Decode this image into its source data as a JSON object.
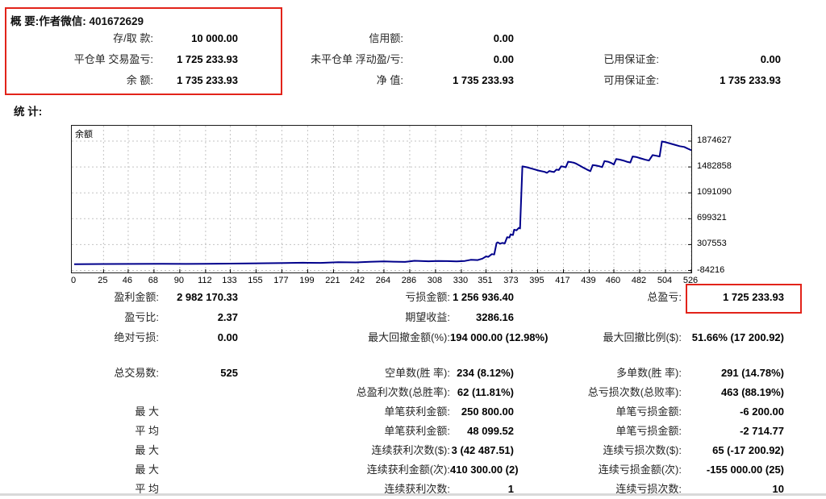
{
  "summary": {
    "heading": "概 要:作者微信: 401672629",
    "rows": [
      {
        "c1l": "存/取 款:",
        "c1v": "10 000.00",
        "c2l": "信用额:",
        "c2v": "0.00",
        "c3l": "",
        "c3v": ""
      },
      {
        "c1l": "平仓单 交易盈亏:",
        "c1v": "1 725 233.93",
        "c2l": "未平仓单 浮动盈/亏:",
        "c2v": "0.00",
        "c3l": "已用保证金:",
        "c3v": "0.00"
      },
      {
        "c1l": "余 额:",
        "c1v": "1 735 233.93",
        "c2l": "净 值:",
        "c2v": "1 735 233.93",
        "c3l": "可用保证金:",
        "c3v": "1 735 233.93"
      }
    ]
  },
  "stats": {
    "heading": "统 计:",
    "rows": [
      {
        "l1": "盈利金额:",
        "v1": "2 982 170.33",
        "l2": "亏损金额:",
        "v2": "1 256 936.40",
        "l3": "总盈亏:",
        "v3": "1 725 233.93"
      },
      {
        "l1": "盈亏比:",
        "v1": "2.37",
        "l2": "期望收益:",
        "v2": "3286.16",
        "l3": "",
        "v3": ""
      },
      {
        "l1": "绝对亏损:",
        "v1": "0.00",
        "l2": "最大回撤金额(%):",
        "v2": "194 000.00 (12.98%)",
        "l3": "最大回撤比例($):",
        "v3": "51.66% (17 200.92)"
      },
      {
        "l1": "总交易数:",
        "v1": "525",
        "l2": "空单数(胜 率):",
        "v2": "234 (8.12%)",
        "l3": "多单数(胜 率):",
        "v3": "291 (14.78%)"
      },
      {
        "l1": "",
        "v1": "",
        "l2": "总盈利次数(总胜率):",
        "v2": "62 (11.81%)",
        "l3": "总亏损次数(总败率):",
        "v3": "463 (88.19%)"
      },
      {
        "l1": "最 大",
        "v1": "",
        "l2": "单笔获利金额:",
        "v2": "250 800.00",
        "l3": "单笔亏损金额:",
        "v3": "-6 200.00"
      },
      {
        "l1": "平 均",
        "v1": "",
        "l2": "单笔获利金额:",
        "v2": "48 099.52",
        "l3": "单笔亏损金额:",
        "v3": "-2 714.77"
      },
      {
        "l1": "最 大",
        "v1": "",
        "l2": "连续获利次数($):",
        "v2": "3 (42 487.51)",
        "l3": "连续亏损次数($):",
        "v3": "65 (-17 200.92)"
      },
      {
        "l1": "最 大",
        "v1": "",
        "l2": "连续获利金额(次):",
        "v2": "410 300.00 (2)",
        "l3": "连续亏损金额(次):",
        "v3": "-155 000.00 (25)"
      },
      {
        "l1": "平 均",
        "v1": "",
        "l2": "连续获利次数:",
        "v2": "1",
        "l3": "连续亏损次数:",
        "v3": "10"
      }
    ]
  },
  "colors": {
    "highlight_red": "#e2231a",
    "equity_line": "#00008b",
    "grid": "#c3c3c3"
  },
  "chart_data": {
    "type": "line",
    "title": "",
    "legend": "余额",
    "xlabel": "",
    "ylabel": "",
    "grid": "dashed",
    "legend_position": "top-left-inside",
    "ylim": [
      -84216,
      1874627
    ],
    "yticks": [
      1874627,
      1482858,
      1091090,
      699321,
      307553,
      -84216
    ],
    "xticks": [
      0,
      25,
      46,
      68,
      90,
      112,
      133,
      155,
      177,
      199,
      221,
      242,
      264,
      286,
      308,
      330,
      351,
      373,
      395,
      417,
      439,
      460,
      482,
      504,
      526
    ],
    "series": [
      {
        "name": "余额",
        "points": [
          [
            0,
            10000
          ],
          [
            25,
            13000
          ],
          [
            50,
            15000
          ],
          [
            75,
            16000
          ],
          [
            95,
            14500
          ],
          [
            112,
            17000
          ],
          [
            133,
            20000
          ],
          [
            150,
            23000
          ],
          [
            165,
            26000
          ],
          [
            180,
            29000
          ],
          [
            195,
            33000
          ],
          [
            210,
            31000
          ],
          [
            225,
            40000
          ],
          [
            240,
            38000
          ],
          [
            252,
            46000
          ],
          [
            264,
            52000
          ],
          [
            272,
            49000
          ],
          [
            282,
            45000
          ],
          [
            290,
            62000
          ],
          [
            295,
            58000
          ],
          [
            302,
            55000
          ],
          [
            310,
            60000
          ],
          [
            318,
            57000
          ],
          [
            326,
            53000
          ],
          [
            333,
            60000
          ],
          [
            338,
            77000
          ],
          [
            344,
            73000
          ],
          [
            348,
            95000
          ],
          [
            351,
            128000
          ],
          [
            353,
            122000
          ],
          [
            356,
            163000
          ],
          [
            358,
            158000
          ],
          [
            360,
            330000
          ],
          [
            361,
            342000
          ],
          [
            363,
            322000
          ],
          [
            365,
            332000
          ],
          [
            367,
            326000
          ],
          [
            369,
            420000
          ],
          [
            371,
            414000
          ],
          [
            372,
            462000
          ],
          [
            374,
            452000
          ],
          [
            375,
            532000
          ],
          [
            377,
            524000
          ],
          [
            379,
            560000
          ],
          [
            380,
            552000
          ],
          [
            382,
            1492000
          ],
          [
            386,
            1478000
          ],
          [
            391,
            1452000
          ],
          [
            396,
            1428000
          ],
          [
            401,
            1408000
          ],
          [
            403,
            1394000
          ],
          [
            405,
            1422000
          ],
          [
            407,
            1412000
          ],
          [
            409,
            1406000
          ],
          [
            411,
            1442000
          ],
          [
            413,
            1436000
          ],
          [
            415,
            1492000
          ],
          [
            417,
            1486000
          ],
          [
            419,
            1478000
          ],
          [
            421,
            1562000
          ],
          [
            424,
            1554000
          ],
          [
            426,
            1546000
          ],
          [
            428,
            1532000
          ],
          [
            431,
            1502000
          ],
          [
            434,
            1472000
          ],
          [
            437,
            1444000
          ],
          [
            440,
            1420000
          ],
          [
            442,
            1512000
          ],
          [
            445,
            1504000
          ],
          [
            448,
            1492000
          ],
          [
            450,
            1480000
          ],
          [
            452,
            1572000
          ],
          [
            455,
            1562000
          ],
          [
            458,
            1542000
          ],
          [
            460,
            1520000
          ],
          [
            462,
            1602000
          ],
          [
            465,
            1594000
          ],
          [
            468,
            1580000
          ],
          [
            471,
            1562000
          ],
          [
            474,
            1550000
          ],
          [
            476,
            1642000
          ],
          [
            479,
            1634000
          ],
          [
            483,
            1612000
          ],
          [
            487,
            1592000
          ],
          [
            490,
            1580000
          ],
          [
            493,
            1662000
          ],
          [
            496,
            1652000
          ],
          [
            499,
            1642000
          ],
          [
            501,
            1868000
          ],
          [
            504,
            1858000
          ],
          [
            508,
            1838000
          ],
          [
            512,
            1818000
          ],
          [
            516,
            1798000
          ],
          [
            520,
            1786000
          ],
          [
            523,
            1760000
          ],
          [
            526,
            1735234
          ]
        ]
      }
    ],
    "final_balance": 1735233.93
  }
}
